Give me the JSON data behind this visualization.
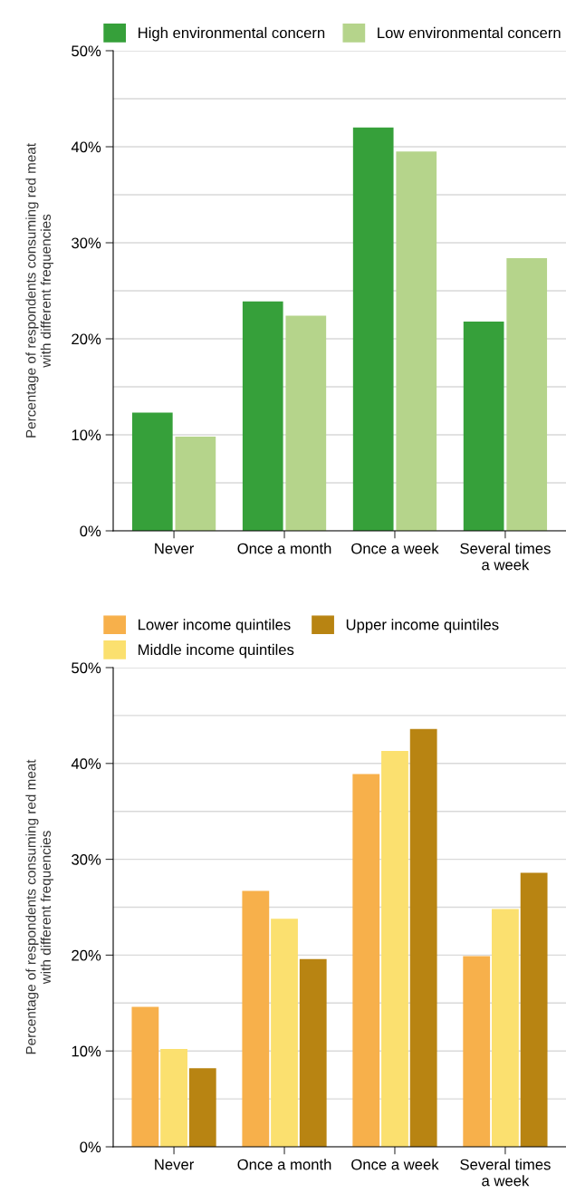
{
  "chart_data": [
    {
      "type": "bar",
      "ylabel": "Percentage of respondents consuming red meat\nwith different frequencies",
      "categories": [
        "Never",
        "Once a month",
        "Once a week",
        "Several times\na week"
      ],
      "series": [
        {
          "name": "High environmental concern",
          "color": "#36a03a",
          "values": [
            12.3,
            23.9,
            42.0,
            21.8
          ]
        },
        {
          "name": "Low environmental concern",
          "color": "#b5d48b",
          "values": [
            9.8,
            22.4,
            39.5,
            28.4
          ]
        }
      ],
      "ylim": [
        0,
        50
      ],
      "yticks": [
        {
          "value": 0,
          "label": "0%"
        },
        {
          "value": 5,
          "label": null
        },
        {
          "value": 10,
          "label": "10%"
        },
        {
          "value": 15,
          "label": null
        },
        {
          "value": 20,
          "label": "20%"
        },
        {
          "value": 25,
          "label": null
        },
        {
          "value": 30,
          "label": "30%"
        },
        {
          "value": 35,
          "label": null
        },
        {
          "value": 40,
          "label": "40%"
        },
        {
          "value": 45,
          "label": null
        },
        {
          "value": 50,
          "label": "50%"
        }
      ],
      "grid": "y",
      "legend": "top"
    },
    {
      "type": "bar",
      "ylabel": "Percentage of respondents consuming red meat\nwith different frequencies",
      "categories": [
        "Never",
        "Once a month",
        "Once a week",
        "Several times\na week"
      ],
      "series": [
        {
          "name": "Lower income quintiles",
          "color": "#f7b04b",
          "values": [
            14.6,
            26.7,
            38.9,
            19.9
          ]
        },
        {
          "name": "Middle income quintiles",
          "color": "#fbe06f",
          "values": [
            10.2,
            23.8,
            41.3,
            24.8
          ]
        },
        {
          "name": "Upper income quintiles",
          "color": "#b88412",
          "values": [
            8.2,
            19.6,
            43.6,
            28.6
          ]
        }
      ],
      "ylim": [
        0,
        50
      ],
      "yticks": [
        {
          "value": 0,
          "label": "0%"
        },
        {
          "value": 5,
          "label": null
        },
        {
          "value": 10,
          "label": "10%"
        },
        {
          "value": 15,
          "label": null
        },
        {
          "value": 20,
          "label": "20%"
        },
        {
          "value": 25,
          "label": null
        },
        {
          "value": 30,
          "label": "30%"
        },
        {
          "value": 35,
          "label": null
        },
        {
          "value": 40,
          "label": "40%"
        },
        {
          "value": 45,
          "label": null
        },
        {
          "value": 50,
          "label": "50%"
        }
      ],
      "grid": "y",
      "legend": "top"
    }
  ]
}
